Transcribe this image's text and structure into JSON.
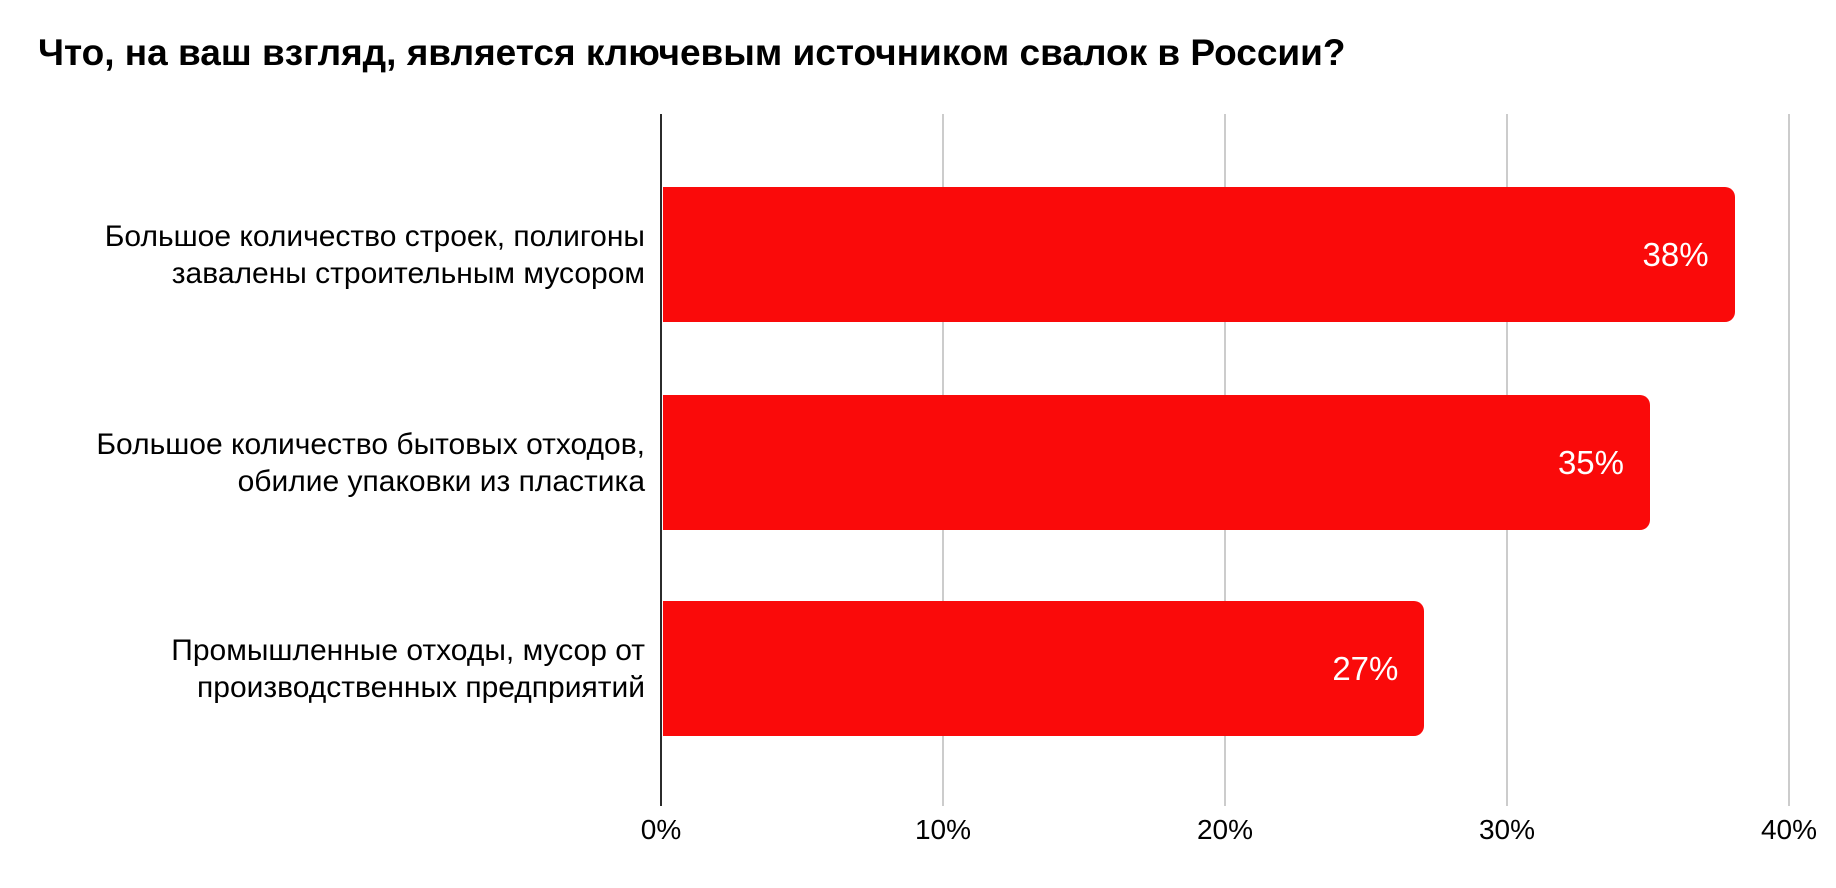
{
  "title": "Что, на ваш взгляд, является ключевым источником свалок в России?",
  "chart_data": {
    "type": "bar",
    "orientation": "horizontal",
    "title": "Что, на ваш взгляд, является ключевым источником свалок в России?",
    "categories": [
      "Большое количество строек, полигоны завалены строительным мусором",
      "Большое количество бытовых отходов, обилие упаковки из пластика",
      "Промышленные отходы, мусор от производственных предприятий"
    ],
    "category_lines": [
      [
        "Большое количество строек, полигоны",
        "завалены строительным мусором"
      ],
      [
        "Большое количество бытовых отходов,",
        "обилие упаковки из пластика"
      ],
      [
        "Промышленные отходы, мусор от",
        "производственных предприятий"
      ]
    ],
    "values": [
      38,
      35,
      27
    ],
    "value_labels": [
      "38%",
      "35%",
      "27%"
    ],
    "xlabel": "",
    "ylabel": "",
    "xlim": [
      0,
      40
    ],
    "x_ticks": [
      "0%",
      "10%",
      "20%",
      "30%",
      "40%"
    ],
    "x_tick_values": [
      0,
      10,
      20,
      30,
      40
    ],
    "grid": "vertical-gridlines-only",
    "legend": "none",
    "colors": {
      "bar": "#fa0a0a",
      "value_label": "#ffffff",
      "gridline": "#cccccc",
      "axis_line": "#2b2b2b",
      "text": "#000000",
      "background": "#ffffff"
    }
  }
}
